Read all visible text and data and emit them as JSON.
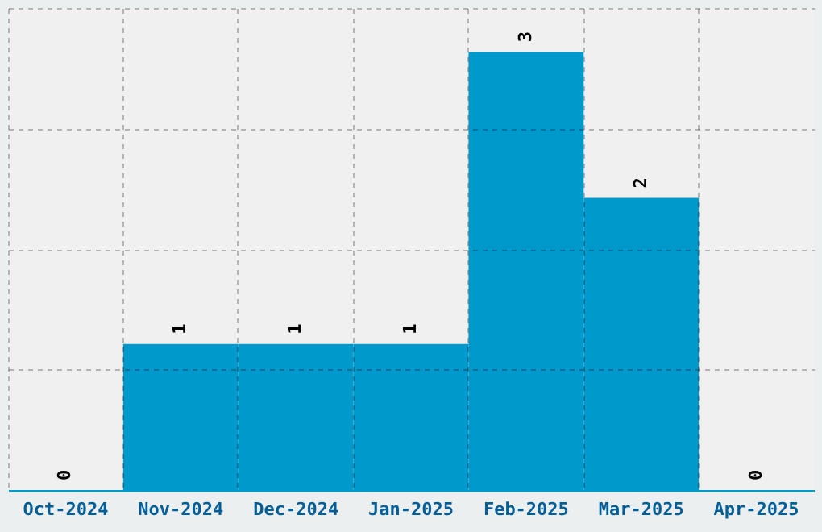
{
  "chart_data": {
    "type": "bar",
    "categories": [
      "Oct-2024",
      "Nov-2024",
      "Dec-2024",
      "Jan-2025",
      "Feb-2025",
      "Mar-2025",
      "Apr-2025"
    ],
    "values": [
      0,
      1,
      1,
      1,
      3,
      2,
      0
    ],
    "color": "#0099cc",
    "data_labels": true,
    "grid": true,
    "tick_labels": "x",
    "ylim": [
      0,
      3.3
    ],
    "yticks": [
      {
        "value": 0,
        "label": null
      },
      {
        "value": 0.825,
        "label": null
      },
      {
        "value": 1.65,
        "label": null
      },
      {
        "value": 2.475,
        "label": null
      },
      {
        "value": 3.3,
        "label": null
      }
    ]
  }
}
